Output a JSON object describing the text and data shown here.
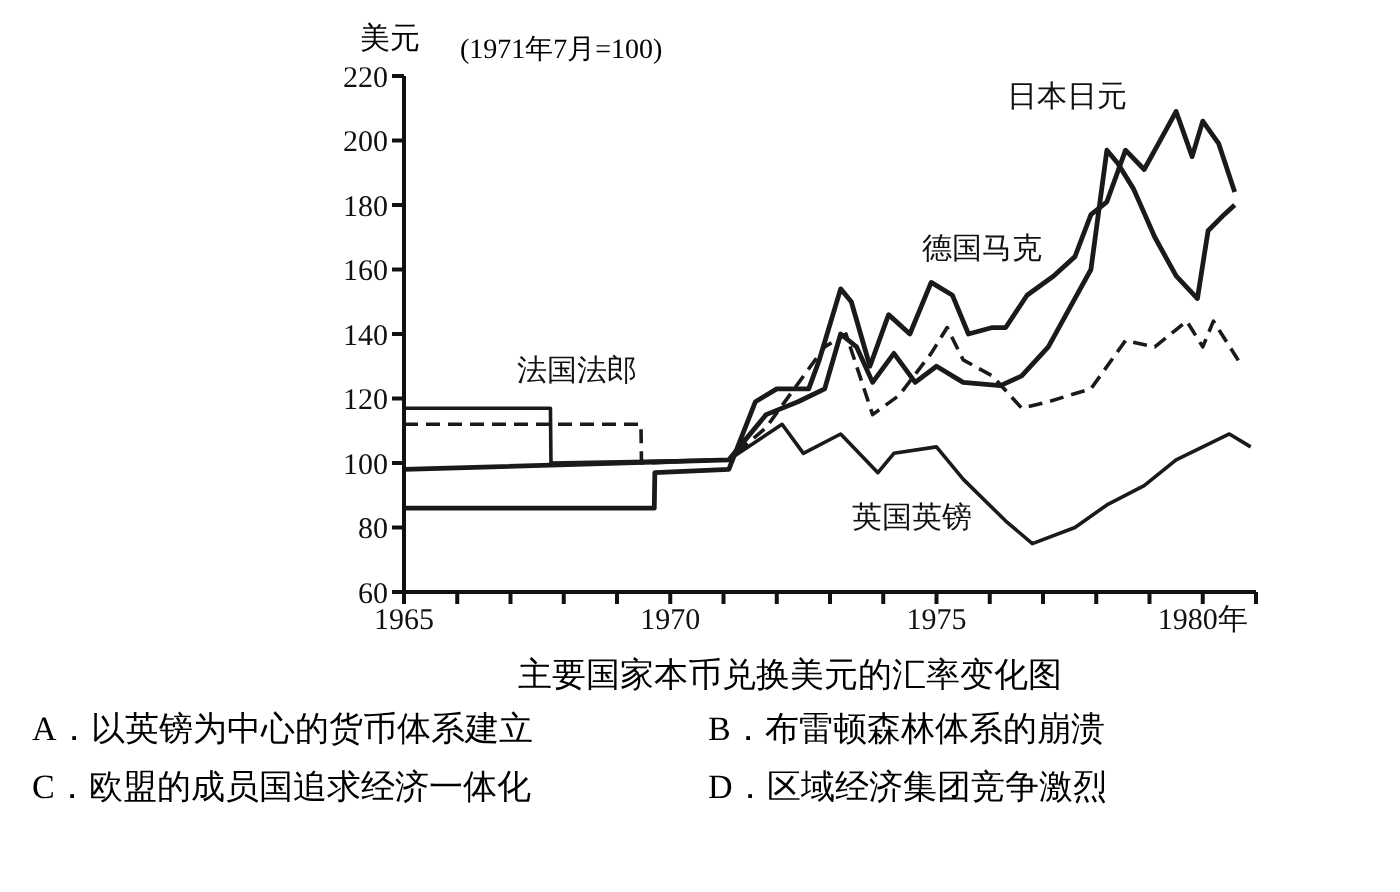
{
  "chart_data": {
    "type": "line",
    "title": "主要国家本币兑换美元的汇率变化图",
    "subtitle": "(1971年7月=100)",
    "ylabel": "美元",
    "xlim": [
      1965,
      1981
    ],
    "xticks": [
      1965,
      {
        "value": 1966,
        "label": null
      },
      {
        "value": 1967,
        "label": null
      },
      {
        "value": 1968,
        "label": null
      },
      {
        "value": 1969,
        "label": null
      },
      1970,
      {
        "value": 1971,
        "label": null
      },
      {
        "value": 1972,
        "label": null
      },
      {
        "value": 1973,
        "label": null
      },
      {
        "value": 1974,
        "label": null
      },
      1975,
      {
        "value": 1976,
        "label": null
      },
      {
        "value": 1977,
        "label": null
      },
      {
        "value": 1978,
        "label": null
      },
      {
        "value": 1979,
        "label": null
      },
      {
        "value": 1980,
        "label": "1980年"
      },
      {
        "value": 1981,
        "label": null
      }
    ],
    "ylim": [
      60,
      220
    ],
    "yticks": [
      60,
      80,
      100,
      120,
      140,
      160,
      180,
      200,
      220
    ],
    "grid": false,
    "legend": false,
    "marker": "none",
    "series": [
      {
        "color": "#1a1a1a",
        "line_style": "solid",
        "x": [
          1965,
          1971.1,
          1971.3,
          1971.8,
          1972.4,
          1972.9,
          1973.2,
          1973.5,
          1973.8,
          1974.2,
          1974.6,
          1975.0,
          1975.5,
          1976.2,
          1976.6,
          1977.1,
          1977.5,
          1977.9,
          1978.2,
          1978.4,
          1978.7,
          1979.1,
          1979.5,
          1979.9,
          1980.1,
          1980.4,
          1980.6
        ],
        "values": [
          98,
          101,
          105,
          115,
          119,
          123,
          140,
          136,
          125,
          134,
          125,
          130,
          125,
          124,
          127,
          136,
          148,
          160,
          197,
          193,
          185,
          170,
          158,
          151,
          172,
          177,
          180
        ]
      },
      {
        "color": "#1a1a1a",
        "line_style": "solid",
        "x": [
          1965,
          1969.7,
          1969.71,
          1971.1,
          1971.6,
          1972.0,
          1972.6,
          1972.8,
          1973.2,
          1973.4,
          1973.75,
          1974.1,
          1974.5,
          1974.9,
          1975.3,
          1975.6,
          1976.05,
          1976.3,
          1976.7,
          1977.2,
          1977.6,
          1977.9,
          1978.2,
          1978.55,
          1978.9,
          1979.3,
          1979.5,
          1979.8,
          1980.0,
          1980.3,
          1980.6
        ],
        "values": [
          86,
          86,
          97,
          98,
          119,
          123,
          123,
          132,
          154,
          150,
          130,
          146,
          140,
          156,
          152,
          140,
          142,
          142,
          152,
          158,
          164,
          177,
          181,
          197,
          191,
          203,
          209,
          195,
          206,
          199,
          184
        ]
      },
      {
        "color": "#1a1a1a",
        "line_style": "dashed",
        "x": [
          1965,
          1969.45,
          1969.46,
          1971.1,
          1971.8,
          1972.9,
          1973.3,
          1973.8,
          1974.3,
          1974.9,
          1975.2,
          1975.5,
          1976.05,
          1976.6,
          1977.1,
          1977.9,
          1978.55,
          1979.1,
          1979.7,
          1980.0,
          1980.2,
          1980.7
        ],
        "values": [
          112,
          112,
          100,
          101,
          111,
          136,
          140,
          115,
          121,
          134,
          142,
          132,
          127,
          117,
          119,
          123,
          138,
          136,
          144,
          136,
          144,
          131
        ]
      },
      {
        "color": "#1a1a1a",
        "line_style": "solid",
        "x": [
          1965,
          1967.75,
          1967.76,
          1971.1,
          1972.1,
          1972.5,
          1973.2,
          1973.9,
          1974.2,
          1975.0,
          1975.5,
          1976.3,
          1976.8,
          1977.6,
          1978.2,
          1978.9,
          1979.5,
          1980.0,
          1980.5,
          1980.9
        ],
        "values": [
          117,
          117,
          100,
          101,
          112,
          103,
          109,
          97,
          103,
          105,
          95,
          82,
          75,
          80,
          87,
          93,
          101,
          105,
          109,
          105
        ]
      }
    ],
    "annotations": [
      {
        "text": "日本日元",
        "x": 1978.2,
        "y": 197
      },
      {
        "text": "德国马克",
        "x": 1976.6,
        "y": 150
      },
      {
        "text": "法国法郎",
        "x": 1969.0,
        "y": 112
      },
      {
        "text": "英国英镑",
        "x": 1975.3,
        "y": 100
      },
      "A．以英镑为中心的货币体系建立",
      "B．布雷顿森林体系的崩溃",
      "C．欧盟的成员国追求经济一体化",
      "D．区域经济集团竞争激烈"
    ]
  }
}
